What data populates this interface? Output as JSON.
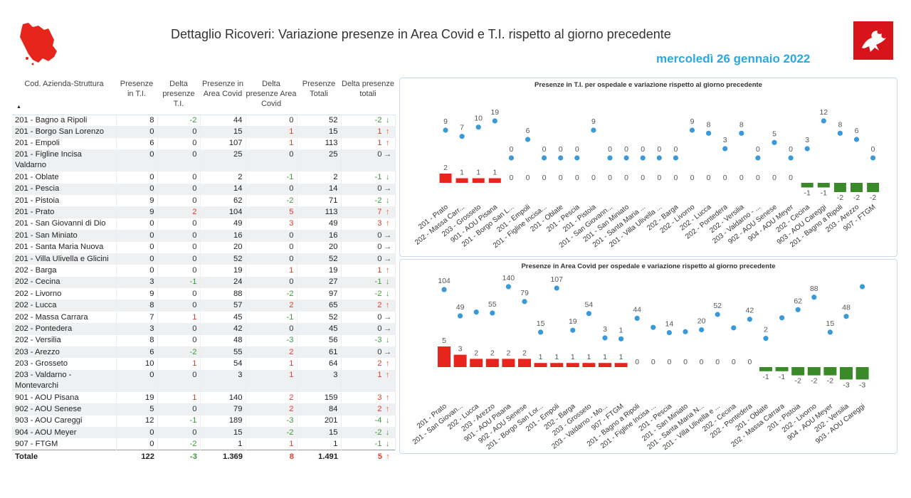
{
  "header": {
    "title": "Dettaglio Ricoveri: Variazione presenze in Area Covid e T.I. rispetto al giorno precedente",
    "date": "mercoledì 26 gennaio 2022"
  },
  "colors": {
    "accent": "#2aa8e0",
    "red": "#e8251c",
    "green": "#3a8a2a",
    "dot": "#3a9ad9"
  },
  "table": {
    "headers": [
      "Cod. Azienda-Struttura",
      "Presenze in T.I.",
      "Delta presenze T.I.",
      "Presenze in Area Covid",
      "Delta presenze Area Covid",
      "Presenze Totali",
      "Delta presenze totali"
    ],
    "rows": [
      {
        "name": "201 - Bagno a Ripoli",
        "ti": "8",
        "dti": "-2",
        "covid": "44",
        "dcovid": "0",
        "tot": "52",
        "dtot": "-2",
        "arrow": "down"
      },
      {
        "name": "201 - Borgo San Lorenzo",
        "ti": "0",
        "dti": "0",
        "covid": "15",
        "dcovid": "1",
        "tot": "15",
        "dtot": "1",
        "arrow": "up"
      },
      {
        "name": "201 - Empoli",
        "ti": "6",
        "dti": "0",
        "covid": "107",
        "dcovid": "1",
        "tot": "113",
        "dtot": "1",
        "arrow": "up"
      },
      {
        "name": "201 - Figline Incisa Valdarno",
        "ti": "0",
        "dti": "0",
        "covid": "25",
        "dcovid": "0",
        "tot": "25",
        "dtot": "0",
        "arrow": "right",
        "tall": true
      },
      {
        "name": "201 - Oblate",
        "ti": "0",
        "dti": "0",
        "covid": "2",
        "dcovid": "-1",
        "tot": "2",
        "dtot": "-1",
        "arrow": "down"
      },
      {
        "name": "201 - Pescia",
        "ti": "0",
        "dti": "0",
        "covid": "14",
        "dcovid": "0",
        "tot": "14",
        "dtot": "0",
        "arrow": "right"
      },
      {
        "name": "201 - Pistoia",
        "ti": "9",
        "dti": "0",
        "covid": "62",
        "dcovid": "-2",
        "tot": "71",
        "dtot": "-2",
        "arrow": "down"
      },
      {
        "name": "201 - Prato",
        "ti": "9",
        "dti": "2",
        "covid": "104",
        "dcovid": "5",
        "tot": "113",
        "dtot": "7",
        "arrow": "up"
      },
      {
        "name": "201 - San Giovanni di Dio",
        "ti": "0",
        "dti": "0",
        "covid": "49",
        "dcovid": "3",
        "tot": "49",
        "dtot": "3",
        "arrow": "up"
      },
      {
        "name": "201 - San Miniato",
        "ti": "0",
        "dti": "0",
        "covid": "16",
        "dcovid": "0",
        "tot": "16",
        "dtot": "0",
        "arrow": "right"
      },
      {
        "name": "201 - Santa Maria Nuova",
        "ti": "0",
        "dti": "0",
        "covid": "20",
        "dcovid": "0",
        "tot": "20",
        "dtot": "0",
        "arrow": "right"
      },
      {
        "name": "201 - Villa Ulivella e Glicini",
        "ti": "0",
        "dti": "0",
        "covid": "52",
        "dcovid": "0",
        "tot": "52",
        "dtot": "0",
        "arrow": "right"
      },
      {
        "name": "202 - Barga",
        "ti": "0",
        "dti": "0",
        "covid": "19",
        "dcovid": "1",
        "tot": "19",
        "dtot": "1",
        "arrow": "up"
      },
      {
        "name": "202 - Cecina",
        "ti": "3",
        "dti": "-1",
        "covid": "24",
        "dcovid": "0",
        "tot": "27",
        "dtot": "-1",
        "arrow": "down"
      },
      {
        "name": "202 - Livorno",
        "ti": "9",
        "dti": "0",
        "covid": "88",
        "dcovid": "-2",
        "tot": "97",
        "dtot": "-2",
        "arrow": "down"
      },
      {
        "name": "202 - Lucca",
        "ti": "8",
        "dti": "0",
        "covid": "57",
        "dcovid": "2",
        "tot": "65",
        "dtot": "2",
        "arrow": "up"
      },
      {
        "name": "202 - Massa Carrara",
        "ti": "7",
        "dti": "1",
        "covid": "45",
        "dcovid": "-1",
        "tot": "52",
        "dtot": "0",
        "arrow": "right"
      },
      {
        "name": "202 - Pontedera",
        "ti": "3",
        "dti": "0",
        "covid": "42",
        "dcovid": "0",
        "tot": "45",
        "dtot": "0",
        "arrow": "right"
      },
      {
        "name": "202 - Versilia",
        "ti": "8",
        "dti": "0",
        "covid": "48",
        "dcovid": "-3",
        "tot": "56",
        "dtot": "-3",
        "arrow": "down"
      },
      {
        "name": "203 - Arezzo",
        "ti": "6",
        "dti": "-2",
        "covid": "55",
        "dcovid": "2",
        "tot": "61",
        "dtot": "0",
        "arrow": "right"
      },
      {
        "name": "203 - Grosseto",
        "ti": "10",
        "dti": "1",
        "covid": "54",
        "dcovid": "1",
        "tot": "64",
        "dtot": "2",
        "arrow": "up"
      },
      {
        "name": "203 - Valdarno - Montevarchi",
        "ti": "0",
        "dti": "0",
        "covid": "3",
        "dcovid": "1",
        "tot": "3",
        "dtot": "1",
        "arrow": "up",
        "tall": true
      },
      {
        "name": "901 - AOU Pisana",
        "ti": "19",
        "dti": "1",
        "covid": "140",
        "dcovid": "2",
        "tot": "159",
        "dtot": "3",
        "arrow": "up"
      },
      {
        "name": "902 - AOU Senese",
        "ti": "5",
        "dti": "0",
        "covid": "79",
        "dcovid": "2",
        "tot": "84",
        "dtot": "2",
        "arrow": "up"
      },
      {
        "name": "903 - AOU Careggi",
        "ti": "12",
        "dti": "-1",
        "covid": "189",
        "dcovid": "-3",
        "tot": "201",
        "dtot": "-4",
        "arrow": "down"
      },
      {
        "name": "904 - AOU Meyer",
        "ti": "0",
        "dti": "0",
        "covid": "15",
        "dcovid": "-2",
        "tot": "15",
        "dtot": "-2",
        "arrow": "down"
      },
      {
        "name": "907 - FTGM",
        "ti": "0",
        "dti": "-2",
        "covid": "1",
        "dcovid": "1",
        "tot": "1",
        "dtot": "-1",
        "arrow": "down"
      }
    ],
    "total": {
      "name": "Totale",
      "ti": "122",
      "dti": "-3",
      "covid": "1.369",
      "dcovid": "8",
      "tot": "1.491",
      "dtot": "5",
      "arrow": "up"
    }
  },
  "chart_data": [
    {
      "type": "bar",
      "title": "Presenze in T.I. per ospedale e variazione rispetto al giorno precedente",
      "categories": [
        "201 - Prato",
        "202 - Massa Carr...",
        "203 - Grosseto",
        "901 - AOU Pisana",
        "201 - Borgo San L...",
        "201 - Empoli",
        "201 - Figline Incisa...",
        "201 - Oblate",
        "201 - Pescia",
        "201 - Pistoia",
        "201 - San Giovann...",
        "201 - San Miniato",
        "201 - Santa Maria ...",
        "201 - Villa Ulivella ...",
        "202 - Barga",
        "202 - Livorno",
        "202 - Lucca",
        "202 - Pontedera",
        "202 - Versilia",
        "203 - Valdarno - ...",
        "902 - AOU Senese",
        "904 - AOU Meyer",
        "202 - Cecina",
        "903 - AOU Careggi",
        "201 - Bagno a Ripoli",
        "203 - Arezzo",
        "907 - FTGM"
      ],
      "series": [
        {
          "values": [
            2,
            1,
            1,
            1,
            0,
            0,
            0,
            0,
            0,
            0,
            0,
            0,
            0,
            0,
            0,
            0,
            0,
            0,
            0,
            0,
            0,
            0,
            -1,
            -1,
            -2,
            -2,
            -2
          ]
        },
        {
          "values": [
            9,
            7,
            10,
            19,
            0,
            6,
            0,
            0,
            0,
            9,
            0,
            0,
            0,
            0,
            0,
            9,
            8,
            3,
            8,
            0,
            5,
            0,
            3,
            12,
            8,
            6,
            0
          ]
        }
      ],
      "point_labels": [
        "9",
        "7",
        "10",
        "19",
        "0",
        "6",
        "0",
        "0",
        "0",
        "9",
        "0",
        "0",
        "0",
        "0",
        "0",
        "9",
        "8",
        "3",
        "8",
        "0",
        "5",
        "0",
        "3",
        "12",
        "8",
        "6",
        "0"
      ],
      "bar_labels": [
        "2",
        "1",
        "1",
        "1",
        "0",
        "0",
        "0",
        "0",
        "0",
        "0",
        "0",
        "0",
        "0",
        "0",
        "0",
        "0",
        "0",
        "0",
        "0",
        "0",
        "0",
        "0",
        "-1",
        "-1",
        "-2",
        "-2",
        "-2"
      ]
    },
    {
      "type": "bar",
      "title": "Presenze in Area Covid per ospedale e variazione rispetto al giorno precedente",
      "categories": [
        "201 - Prato",
        "201 - San Giovan...",
        "202 - Lucca",
        "203 - Arezzo",
        "901 - AOU Pisana",
        "902 - AOU Senese",
        "201 - Borgo San Lor...",
        "201 - Empoli",
        "202 - Barga",
        "203 - Grosseto",
        "203 - Valdarno - Mo...",
        "907 - FTGM",
        "201 - Bagno a Ripoli",
        "201 - Figline Incisa ...",
        "201 - Pescia",
        "201 - San Miniato",
        "201 - Santa Maria N...",
        "201 - Villa Ulivella e ...",
        "202 - Cecina",
        "202 - Pontedera",
        "201 - Oblate",
        "202 - Massa Carrara",
        "201 - Pistoia",
        "202 - Livorno",
        "904 - AOU Meyer",
        "202 - Versilia",
        "903 - AOU Careggi"
      ],
      "series": [
        {
          "values": [
            5,
            3,
            2,
            2,
            2,
            2,
            1,
            1,
            1,
            1,
            1,
            1,
            0,
            0,
            0,
            0,
            0,
            0,
            0,
            0,
            -1,
            -1,
            -2,
            -2,
            -2,
            -3,
            -3
          ]
        },
        {
          "values": [
            104,
            49,
            57,
            55,
            140,
            79,
            15,
            107,
            19,
            54,
            3,
            1,
            44,
            25,
            14,
            16,
            20,
            52,
            24,
            42,
            2,
            45,
            62,
            88,
            15,
            48,
            189
          ]
        }
      ],
      "point_labels": [
        "104",
        "49",
        "",
        "55",
        "140",
        "79",
        "15",
        "107",
        "19",
        "54",
        "3",
        "1",
        "44",
        "",
        "14",
        "",
        "20",
        "52",
        "",
        "42",
        "2",
        "",
        "62",
        "88",
        "15",
        "48",
        ""
      ],
      "bar_labels": [
        "5",
        "3",
        "2",
        "2",
        "2",
        "2",
        "1",
        "1",
        "1",
        "1",
        "1",
        "1",
        "0",
        "0",
        "0",
        "0",
        "0",
        "0",
        "0",
        "0",
        "-1",
        "-1",
        "-2",
        "-2",
        "-2",
        "-3",
        "-3"
      ]
    }
  ]
}
